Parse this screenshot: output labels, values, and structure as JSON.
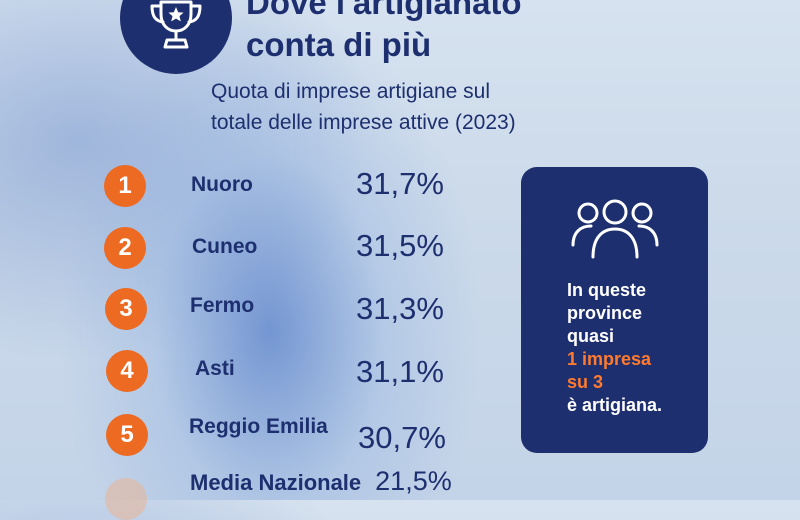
{
  "header": {
    "title_line1": "Dove l'artigianato",
    "title_line2": "conta di più",
    "subtitle_line1": "Quota di imprese artigiane sul",
    "subtitle_line2": "totale delle imprese attive (2023)",
    "icon": "trophy-icon"
  },
  "ranking": [
    {
      "rank": "1",
      "province": "Nuoro",
      "value": "31,7%"
    },
    {
      "rank": "2",
      "province": "Cuneo",
      "value": "31,5%"
    },
    {
      "rank": "3",
      "province": "Fermo",
      "value": "31,3%"
    },
    {
      "rank": "4",
      "province": "Asti",
      "value": "31,1%"
    },
    {
      "rank": "5",
      "province": "Reggio Emilia",
      "value": "30,7%"
    }
  ],
  "national_average": {
    "label": "Media Nazionale",
    "value": "21,5%"
  },
  "info_card": {
    "icon": "people-group-icon",
    "line1": "In queste",
    "line2": "province",
    "line3": "quasi",
    "highlight_line1": "1 impresa",
    "highlight_line2": "su 3",
    "line4": "è artigiana."
  },
  "colors": {
    "navy": "#1d2f6e",
    "orange": "#ec6a22",
    "highlight": "#ff7a2e",
    "background": "#ccdaea"
  }
}
